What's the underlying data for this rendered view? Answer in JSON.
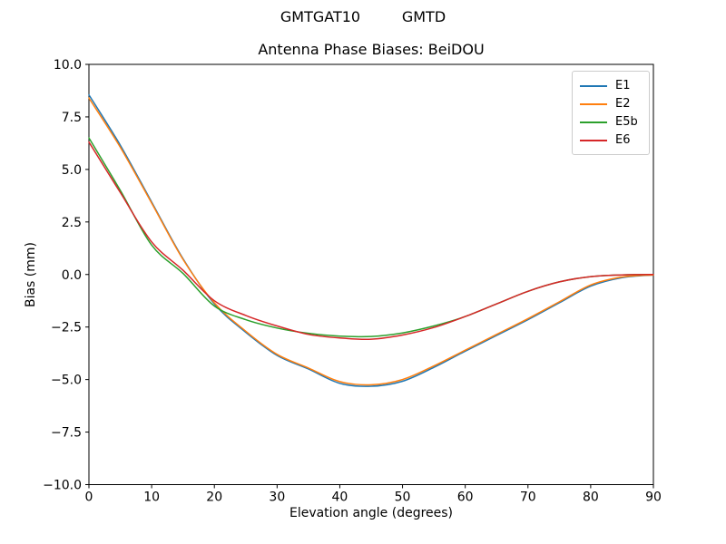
{
  "figure": {
    "suptitle": "GMTGAT10         GMTD"
  },
  "chart_data": {
    "type": "line",
    "suptitle": "GMTGAT10         GMTD",
    "title": "Antenna Phase Biases: BeiDOU",
    "xlabel": "Elevation angle (degrees)",
    "ylabel": "Bias (mm)",
    "xlim": [
      0,
      90
    ],
    "ylim": [
      -10,
      10
    ],
    "grid": false,
    "legend_position": "upper right",
    "x": [
      0,
      5,
      10,
      15,
      20,
      25,
      30,
      35,
      40,
      45,
      50,
      55,
      60,
      65,
      70,
      75,
      80,
      85,
      90
    ],
    "series": [
      {
        "name": "E1",
        "color": "#1f77b4",
        "values": [
          8.55,
          6.15,
          3.45,
          0.75,
          -1.4,
          -2.75,
          -3.85,
          -4.5,
          -5.18,
          -5.32,
          -5.08,
          -4.42,
          -3.65,
          -2.9,
          -2.15,
          -1.35,
          -0.55,
          -0.15,
          -0.02
        ]
      },
      {
        "name": "E2",
        "color": "#ff7f0e",
        "values": [
          8.4,
          6.05,
          3.4,
          0.72,
          -1.35,
          -2.7,
          -3.8,
          -4.45,
          -5.1,
          -5.25,
          -5.0,
          -4.35,
          -3.6,
          -2.85,
          -2.1,
          -1.3,
          -0.5,
          -0.12,
          -0.02
        ]
      },
      {
        "name": "E5b",
        "color": "#2ca02c",
        "values": [
          6.5,
          4.0,
          1.4,
          0.05,
          -1.5,
          -2.15,
          -2.55,
          -2.8,
          -2.93,
          -2.95,
          -2.78,
          -2.45,
          -2.0,
          -1.4,
          -0.8,
          -0.35,
          -0.1,
          -0.02,
          0.0
        ]
      },
      {
        "name": "E6",
        "color": "#d62728",
        "values": [
          6.3,
          3.9,
          1.55,
          0.2,
          -1.25,
          -1.95,
          -2.45,
          -2.85,
          -3.02,
          -3.08,
          -2.88,
          -2.52,
          -2.0,
          -1.4,
          -0.8,
          -0.35,
          -0.1,
          -0.02,
          0.0
        ]
      }
    ],
    "xticks": [
      {
        "v": 0,
        "label": "0"
      },
      {
        "v": 10,
        "label": "10"
      },
      {
        "v": 20,
        "label": "20"
      },
      {
        "v": 30,
        "label": "30"
      },
      {
        "v": 40,
        "label": "40"
      },
      {
        "v": 50,
        "label": "50"
      },
      {
        "v": 60,
        "label": "60"
      },
      {
        "v": 70,
        "label": "70"
      },
      {
        "v": 80,
        "label": "80"
      },
      {
        "v": 90,
        "label": "90"
      }
    ],
    "yticks": [
      {
        "v": 10,
        "label": "10.0"
      },
      {
        "v": 7.5,
        "label": "7.5"
      },
      {
        "v": 5,
        "label": "5.0"
      },
      {
        "v": 2.5,
        "label": "2.5"
      },
      {
        "v": 0,
        "label": "0.0"
      },
      {
        "v": -2.5,
        "label": "−2.5"
      },
      {
        "v": -5,
        "label": "−5.0"
      },
      {
        "v": -7.5,
        "label": "−7.5"
      },
      {
        "v": -10,
        "label": "−10.0"
      }
    ]
  }
}
